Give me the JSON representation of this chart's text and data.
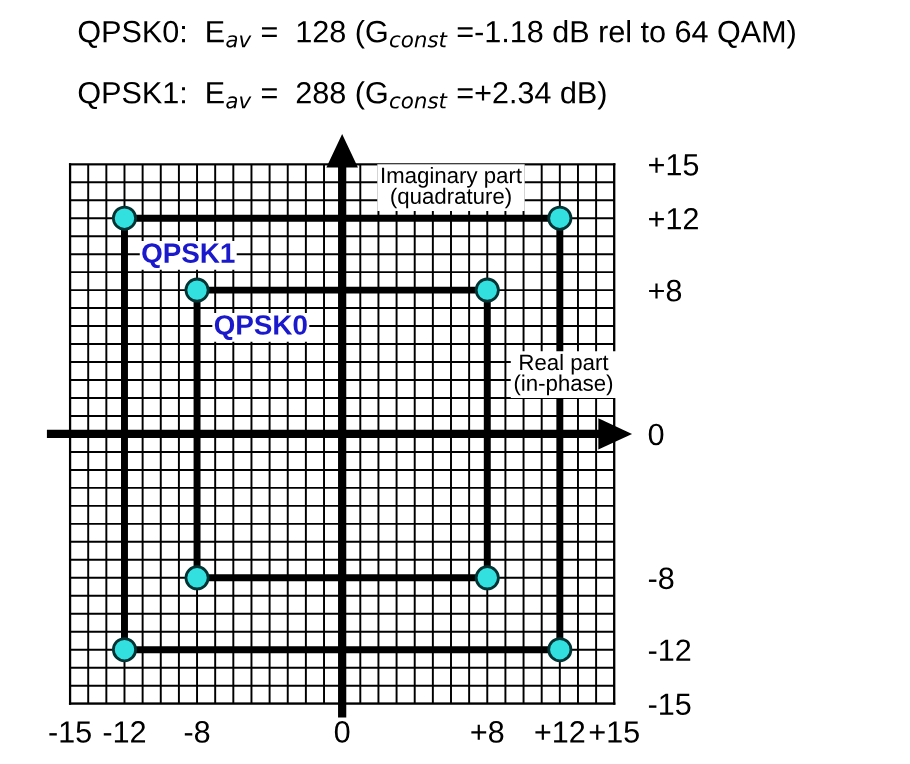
{
  "chart_data": {
    "type": "scatter",
    "title": "QPSK0:  E$_{av}$ =  128 (G$_{const}$ =-1.18 dB rel to 64 QAM)",
    "subtitle": "QPSK1:  E$_{av}$ =  288 (G$_{const}$ =+2.34 dB)",
    "annotations": [
      "Imaginary part\n(quadrature)",
      "Real part\n(in-phase)"
    ],
    "series": [
      {
        "name": "QPSK1",
        "color": "#33e0e0",
        "x": [
          -12,
          12,
          12,
          -12
        ],
        "values": [
          12,
          12,
          -12,
          -12
        ]
      },
      {
        "name": "QPSK0",
        "color": "#33e0e0",
        "x": [
          -8,
          8,
          8,
          -8
        ],
        "values": [
          8,
          8,
          -8,
          -8
        ]
      }
    ],
    "marker": "circle",
    "line_style": "solid",
    "grid": true,
    "xlim": [
      -15,
      15
    ],
    "ylim": [
      -15,
      15
    ],
    "xticks": [
      -15,
      {
        "value": -14,
        "label": null
      },
      {
        "value": -13,
        "label": null
      },
      {
        "value": -12,
        "label": "-12"
      },
      {
        "value": -11,
        "label": null
      },
      {
        "value": -10,
        "label": null
      },
      {
        "value": -9,
        "label": null
      },
      -8,
      {
        "value": -7,
        "label": null
      },
      {
        "value": -6,
        "label": null
      },
      {
        "value": -5,
        "label": null
      },
      {
        "value": -4,
        "label": null
      },
      {
        "value": -3,
        "label": null
      },
      {
        "value": -2,
        "label": null
      },
      {
        "value": -1,
        "label": null
      },
      0,
      {
        "value": 1,
        "label": null
      },
      {
        "value": 2,
        "label": null
      },
      {
        "value": 3,
        "label": null
      },
      {
        "value": 4,
        "label": null
      },
      {
        "value": 5,
        "label": null
      },
      {
        "value": 6,
        "label": null
      },
      {
        "value": 7,
        "label": null
      },
      {
        "value": 8,
        "label": "+8"
      },
      {
        "value": 9,
        "label": null
      },
      {
        "value": 10,
        "label": null
      },
      {
        "value": 11,
        "label": null
      },
      {
        "value": 12,
        "label": "+12"
      },
      {
        "value": 13,
        "label": null
      },
      {
        "value": 14,
        "label": null
      },
      {
        "value": 15,
        "label": "+15"
      }
    ],
    "yticks": [
      -15,
      {
        "value": -14,
        "label": null
      },
      {
        "value": -13,
        "label": null
      },
      -12,
      {
        "value": -11,
        "label": null
      },
      {
        "value": -10,
        "label": null
      },
      {
        "value": -9,
        "label": null
      },
      -8,
      {
        "value": -7,
        "label": null
      },
      {
        "value": -6,
        "label": null
      },
      {
        "value": -5,
        "label": null
      },
      {
        "value": -4,
        "label": null
      },
      {
        "value": -3,
        "label": null
      },
      {
        "value": -2,
        "label": null
      },
      {
        "value": -1,
        "label": null
      },
      0,
      {
        "value": 1,
        "label": null
      },
      {
        "value": 2,
        "label": null
      },
      {
        "value": 3,
        "label": null
      },
      {
        "value": 4,
        "label": null
      },
      {
        "value": 5,
        "label": null
      },
      {
        "value": 6,
        "label": null
      },
      {
        "value": 7,
        "label": null
      },
      {
        "value": 8,
        "label": "+8"
      },
      {
        "value": 9,
        "label": null
      },
      {
        "value": 10,
        "label": null
      },
      {
        "value": 11,
        "label": null
      },
      {
        "value": 12,
        "label": "+12"
      },
      {
        "value": 13,
        "label": null
      },
      {
        "value": 14,
        "label": null
      },
      {
        "value": 15,
        "label": "+15"
      }
    ]
  }
}
